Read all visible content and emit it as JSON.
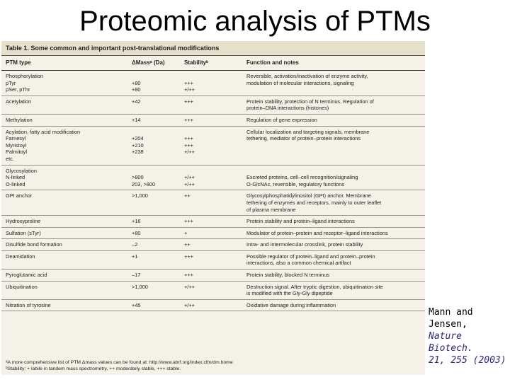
{
  "slide_title": "Proteomic analysis of PTMs",
  "table": {
    "caption": "Table 1. Some common and important post-translational modifications",
    "headers": {
      "type": "PTM type",
      "mass": "ΔMassᵃ (Da)",
      "stability": "Stabilityᵇ",
      "function": "Function and notes"
    },
    "rows": [
      {
        "type": "Phosphorylation\n    pTyr\n    pSer, pThr",
        "mass": "\n+80\n+80",
        "stability": "\n+++\n+/++",
        "function": "Reversible, activation/inactivation of enzyme activity,\nmodulation of molecular interactions, signaling"
      },
      {
        "type": "Acetylation",
        "mass": "+42",
        "stability": "+++",
        "function": "Protein stability, protection of N terminus. Regulation of\nprotein–DNA interactions (histones)"
      },
      {
        "type": "Methylation",
        "mass": "+14",
        "stability": "+++",
        "function": "Regulation of gene expression"
      },
      {
        "type": "Acylation, fatty acid modification\n    Farnesyl\n    Myristoyl\n    Palmitoyl\n    etc.",
        "mass": "\n+204\n+210\n+238",
        "stability": "\n+++\n+++\n+/++",
        "function": "Cellular localization and targeting signals, membrane\ntethering, mediator of protein–protein interactions"
      },
      {
        "type": "Glycosylation\n    N-linked\n    O-linked",
        "mass": "\n>800\n203, >800",
        "stability": "\n+/++\n+/++",
        "function": "\nExcreted proteins, cell–cell recognition/signaling\nO-GlcNAc, reversible, regulatory functions"
      },
      {
        "type": "GPI anchor",
        "mass": ">1,000",
        "stability": "++",
        "function": "Glycosylphosphatidylinositol (GPI) anchor. Membrane\ntethering of enzymes and receptors, mainly to outer leaflet\nof plasma membrane"
      },
      {
        "type": "Hydroxyproline",
        "mass": "+16",
        "stability": "+++",
        "function": "Protein stability and protein–ligand interactions"
      },
      {
        "type": "Sulfation (sTyr)",
        "mass": "+80",
        "stability": "+",
        "function": "Modulator of protein–protein and receptor–ligand interactions"
      },
      {
        "type": "Disulfide bond formation",
        "mass": "–2",
        "stability": "++",
        "function": "Intra- and intermolecular crosslink, protein stability"
      },
      {
        "type": "Deamidation",
        "mass": "+1",
        "stability": "+++",
        "function": "Possible regulator of protein–ligand and protein–protein\ninteractions, also a common chemical artifact"
      },
      {
        "type": "Pyroglutamic acid",
        "mass": "–17",
        "stability": "+++",
        "function": "Protein stability, blocked N terminus"
      },
      {
        "type": "Ubiquitination",
        "mass": ">1,000",
        "stability": "+/++",
        "function": "Destruction signal. After tryptic digestion, ubiquitination site\nis modified with the Gly-Gly dipeptide"
      },
      {
        "type": "Nitration of tyrosine",
        "mass": "+45",
        "stability": "+/++",
        "function": "Oxidative damage during inflammation"
      }
    ],
    "footnotes": [
      "ᵃA more comprehensive list of PTM Δmass values can be found at: http://www.abrf.org/index.cfm/dm.home",
      "ᵇStability: + labile in tandem mass spectrometry, ++ moderately stable, +++ stable."
    ]
  },
  "citation": {
    "authors": "Mann and Jensen,",
    "journal": "Nature Biotech.",
    "ref": "21, 255 (2003)"
  }
}
